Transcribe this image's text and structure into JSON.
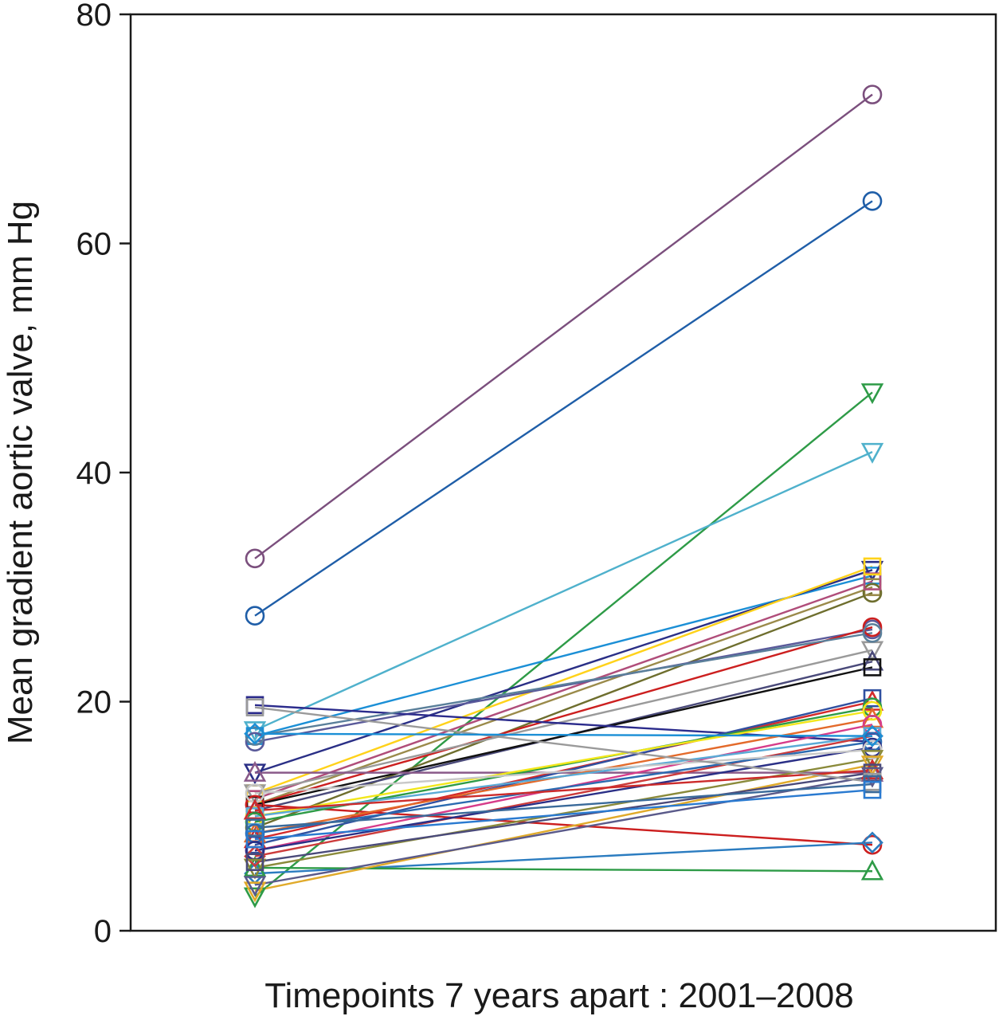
{
  "chart_data": {
    "type": "line",
    "xlabel": "Timepoints 7 years apart : 2001–2008",
    "ylabel": "Mean gradient aortic valve, mm Hg",
    "ylim": [
      0,
      80
    ],
    "yticks": [
      {
        "value": 0,
        "label": "0"
      },
      {
        "value": 20,
        "label": "20"
      },
      {
        "value": 40,
        "label": "40"
      },
      {
        "value": 60,
        "label": "60"
      },
      {
        "value": 80,
        "label": "80"
      }
    ],
    "x": [
      "2001",
      "2008"
    ],
    "grid": false,
    "series": [
      {
        "values": [
          32.5,
          73.0
        ],
        "color": "#7b4f7d",
        "marker": "circle"
      },
      {
        "values": [
          27.5,
          63.7
        ],
        "color": "#1f5ea8",
        "marker": "circle"
      },
      {
        "values": [
          3.0,
          47.0
        ],
        "color": "#2e9b47",
        "marker": "triangle-down"
      },
      {
        "values": [
          17.5,
          41.8
        ],
        "color": "#4fb1cc",
        "marker": "triangle-down"
      },
      {
        "values": [
          17.0,
          31.0
        ],
        "color": "#1b8fd6",
        "marker": "square"
      },
      {
        "values": [
          13.8,
          31.5
        ],
        "color": "#2a2f86",
        "marker": "triangle-down"
      },
      {
        "values": [
          11.0,
          30.0
        ],
        "color": "#9a8a4a",
        "marker": "square"
      },
      {
        "values": [
          9.0,
          29.5
        ],
        "color": "#6e6e2e",
        "marker": "circle"
      },
      {
        "values": [
          11.5,
          30.5
        ],
        "color": "#b04d7a",
        "marker": "square"
      },
      {
        "values": [
          12.0,
          31.8
        ],
        "color": "#ffd21a",
        "marker": "square"
      },
      {
        "values": [
          16.5,
          26.3
        ],
        "color": "#5a5a9a",
        "marker": "circle"
      },
      {
        "values": [
          11.0,
          26.5
        ],
        "color": "#cc1f1f",
        "marker": "circle"
      },
      {
        "values": [
          12.0,
          24.5
        ],
        "color": "#9a9a9a",
        "marker": "triangle-down"
      },
      {
        "values": [
          10.5,
          23.5
        ],
        "color": "#4a4a7a",
        "marker": "triangle"
      },
      {
        "values": [
          11.0,
          23.0
        ],
        "color": "#111111",
        "marker": "square"
      },
      {
        "values": [
          19.7,
          16.5
        ],
        "color": "#2b2b8c",
        "marker": "square"
      },
      {
        "values": [
          17.0,
          26.0
        ],
        "color": "#5a7f9a",
        "marker": "circle"
      },
      {
        "values": [
          13.8,
          13.8
        ],
        "color": "#8a5a8a",
        "marker": "triangle"
      },
      {
        "values": [
          11.0,
          7.5
        ],
        "color": "#cc1f1f",
        "marker": "circle"
      },
      {
        "values": [
          5.0,
          7.7
        ],
        "color": "#2b7cc0",
        "marker": "diamond"
      },
      {
        "values": [
          5.5,
          5.2
        ],
        "color": "#2e9b47",
        "marker": "triangle"
      },
      {
        "values": [
          8.0,
          20.0
        ],
        "color": "#d42a2a",
        "marker": "triangle"
      },
      {
        "values": [
          7.5,
          20.3
        ],
        "color": "#3050a0",
        "marker": "square"
      },
      {
        "values": [
          9.5,
          19.5
        ],
        "color": "#2e9b47",
        "marker": "circle"
      },
      {
        "values": [
          10.0,
          19.2
        ],
        "color": "#f2e71a",
        "marker": "circle"
      },
      {
        "values": [
          8.5,
          18.5
        ],
        "color": "#e36a2a",
        "marker": "triangle"
      },
      {
        "values": [
          7.0,
          18.0
        ],
        "color": "#d63c8a",
        "marker": "circle"
      },
      {
        "values": [
          10.0,
          17.0
        ],
        "color": "#5aaad6",
        "marker": "square"
      },
      {
        "values": [
          6.5,
          17.0
        ],
        "color": "#cc3b3b",
        "marker": "diamond"
      },
      {
        "values": [
          8.5,
          16.5
        ],
        "color": "#2b6ab0",
        "marker": "circle"
      },
      {
        "values": [
          7.0,
          16.0
        ],
        "color": "#2a2f86",
        "marker": "circle"
      },
      {
        "values": [
          12.0,
          15.8
        ],
        "color": "#c8c8c8",
        "marker": "circle"
      },
      {
        "values": [
          5.5,
          15.0
        ],
        "color": "#8a8a3a",
        "marker": "triangle-down"
      },
      {
        "values": [
          3.5,
          14.5
        ],
        "color": "#e0aa2a",
        "marker": "triangle-down"
      },
      {
        "values": [
          10.5,
          14.0
        ],
        "color": "#cc2b2b",
        "marker": "triangle"
      },
      {
        "values": [
          6.0,
          13.8
        ],
        "color": "#4a4a7a",
        "marker": "square"
      },
      {
        "values": [
          4.0,
          13.5
        ],
        "color": "#5a5a8a",
        "marker": "triangle-down"
      },
      {
        "values": [
          19.5,
          13.0
        ],
        "color": "#9a9a9a",
        "marker": "square"
      },
      {
        "values": [
          9.0,
          12.8
        ],
        "color": "#3a6a9a",
        "marker": "square"
      },
      {
        "values": [
          8.0,
          12.3
        ],
        "color": "#2a7ad0",
        "marker": "square"
      },
      {
        "values": [
          17.2,
          17.0
        ],
        "color": "#1b8fd6",
        "marker": "diamond"
      }
    ]
  }
}
